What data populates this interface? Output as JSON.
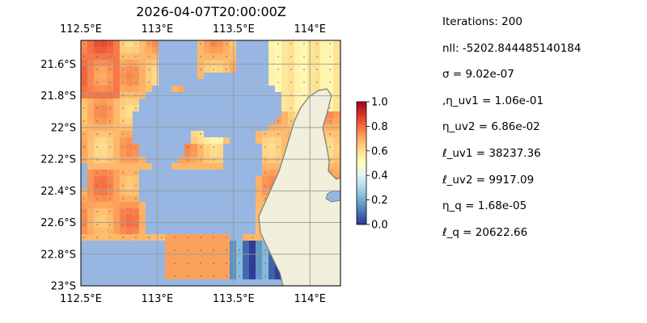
{
  "chart_data": {
    "type": "heatmap",
    "title": "2026-04-07T20:00:00Z",
    "x_ticks": [
      "112.5°E",
      "113°E",
      "113.5°E",
      "114°E"
    ],
    "x_tick_values": [
      112.5,
      113.0,
      113.5,
      114.0
    ],
    "y_ticks": [
      "21.6°S",
      "21.8°S",
      "22°S",
      "22.2°S",
      "22.4°S",
      "22.6°S",
      "22.8°S",
      "23°S"
    ],
    "y_tick_values": [
      -21.6,
      -21.8,
      -22.0,
      -22.2,
      -22.4,
      -22.6,
      -22.8,
      -23.0
    ],
    "xlim": [
      112.5,
      114.2
    ],
    "ylim": [
      -23.0,
      -21.45
    ],
    "grid": true,
    "colorbar": {
      "range": [
        0.0,
        1.0
      ],
      "ticks": [
        "1.0",
        "0.8",
        "0.6",
        "0.4",
        "0.2",
        "0.0"
      ],
      "tick_values": [
        1.0,
        0.8,
        0.6,
        0.4,
        0.2,
        0.0
      ],
      "colormap": "RdYlBu_r"
    },
    "colors": {
      "ocean": "#97b6e1",
      "land": "#efefdb",
      "coast": "#7a7a7a"
    }
  },
  "stats": [
    "Iterations: 200",
    "nll: -5202.844485140184",
    "σ = 9.02e-07",
    ",η_uv1 = 1.06e-01",
    "η_uv2 = 6.86e-02",
    "ℓ_uv1 = 38237.36",
    "ℓ_uv2 = 9917.09",
    "η_q = 1.68e-05",
    "ℓ_q = 20622.66"
  ]
}
